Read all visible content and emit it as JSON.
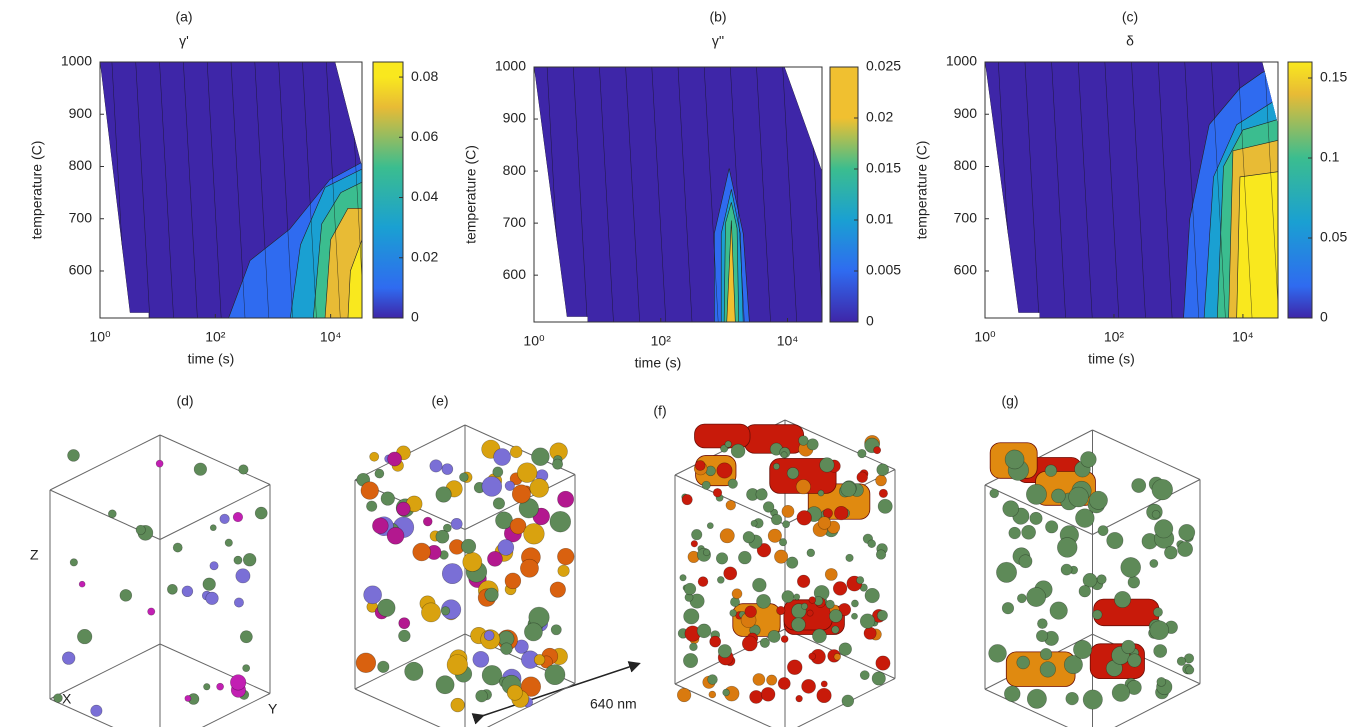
{
  "chart_data": [
    {
      "type": "contour",
      "panel": "(a)",
      "title": "γ'",
      "xlabel": "time (s)",
      "ylabel": "temperature (C)",
      "xscale": "log",
      "xlim": [
        1,
        35000
      ],
      "xticks": [
        {
          "value": 1,
          "label": "10⁰"
        },
        {
          "value": 100,
          "label": "10²"
        },
        {
          "value": 10000,
          "label": "10⁴"
        }
      ],
      "ylim": [
        510,
        1000
      ],
      "yticks": [
        600,
        700,
        800,
        900,
        1000
      ],
      "colorbar": {
        "lim": [
          0,
          0.085
        ],
        "ticks": [
          0,
          0.02,
          0.04,
          0.06,
          0.08
        ]
      },
      "contours": [
        {
          "level": 0,
          "color": "#3e26a8",
          "points": [
            [
              1,
              1000
            ],
            [
              12000,
              1000
            ],
            [
              35000,
              800
            ],
            [
              35000,
              510
            ],
            [
              7,
              510
            ],
            [
              7,
              520
            ],
            [
              3.3,
              520
            ]
          ]
        },
        {
          "level": 0.01,
          "color": "#2f6bf0",
          "points": [
            [
              170,
              510
            ],
            [
              400,
              620
            ],
            [
              1950,
              680
            ],
            [
              9700,
              775
            ],
            [
              35000,
              808
            ],
            [
              35000,
              510
            ]
          ]
        },
        {
          "level": 0.03,
          "color": "#1aa0d2",
          "points": [
            [
              2000,
              510
            ],
            [
              3000,
              650
            ],
            [
              8000,
              760
            ],
            [
              35000,
              795
            ],
            [
              35000,
              510
            ]
          ]
        },
        {
          "level": 0.05,
          "color": "#3bbd8f",
          "points": [
            [
              5000,
              510
            ],
            [
              7000,
              690
            ],
            [
              15000,
              750
            ],
            [
              35000,
              770
            ],
            [
              35000,
              510
            ]
          ]
        },
        {
          "level": 0.07,
          "color": "#e8bb35",
          "points": [
            [
              8000,
              510
            ],
            [
              10000,
              660
            ],
            [
              20000,
              720
            ],
            [
              35000,
              720
            ],
            [
              35000,
              510
            ]
          ]
        },
        {
          "level": 0.08,
          "color": "#f9e81e",
          "points": [
            [
              20000,
              510
            ],
            [
              22000,
              600
            ],
            [
              35000,
              660
            ],
            [
              35000,
              510
            ]
          ]
        }
      ]
    },
    {
      "type": "contour",
      "panel": "(b)",
      "title": "γ''",
      "xlabel": "time (s)",
      "ylabel": "temperature (C)",
      "xscale": "log",
      "xlim": [
        1,
        35000
      ],
      "xticks": [
        {
          "value": 1,
          "label": "10⁰"
        },
        {
          "value": 100,
          "label": "10²"
        },
        {
          "value": 10000,
          "label": "10⁴"
        }
      ],
      "ylim": [
        510,
        1000
      ],
      "yticks": [
        600,
        700,
        800,
        900,
        1000
      ],
      "colorbar": {
        "lim": [
          0,
          0.025
        ],
        "ticks": [
          0,
          0.005,
          0.01,
          0.015,
          0.02,
          0.025
        ]
      },
      "contours": [
        {
          "level": 0,
          "color": "#3e26a8",
          "points": [
            [
              1,
              1000
            ],
            [
              9000,
              1000
            ],
            [
              35000,
              800
            ],
            [
              35000,
              510
            ],
            [
              7,
              510
            ],
            [
              7,
              520
            ],
            [
              3.3,
              520
            ]
          ]
        },
        {
          "level": 0.005,
          "color": "#2f6bf0",
          "points": [
            [
              700,
              510
            ],
            [
              700,
              680
            ],
            [
              1200,
              805
            ],
            [
              2000,
              680
            ],
            [
              2500,
              510
            ]
          ]
        },
        {
          "level": 0.01,
          "color": "#1aa0d2",
          "points": [
            [
              900,
              510
            ],
            [
              900,
              680
            ],
            [
              1300,
              765
            ],
            [
              1800,
              680
            ],
            [
              2000,
              510
            ]
          ]
        },
        {
          "level": 0.015,
          "color": "#3bbd8f",
          "points": [
            [
              1000,
              510
            ],
            [
              1050,
              700
            ],
            [
              1300,
              740
            ],
            [
              1600,
              690
            ],
            [
              1700,
              510
            ]
          ]
        },
        {
          "level": 0.02,
          "color": "#f0c030",
          "points": [
            [
              1100,
              510
            ],
            [
              1300,
              705
            ],
            [
              1500,
              510
            ]
          ]
        }
      ]
    },
    {
      "type": "contour",
      "panel": "(c)",
      "title": "δ",
      "xlabel": "time (s)",
      "ylabel": "temperature (C)",
      "xscale": "log",
      "xlim": [
        1,
        35000
      ],
      "xticks": [
        {
          "value": 1,
          "label": "10⁰"
        },
        {
          "value": 100,
          "label": "10²"
        },
        {
          "value": 10000,
          "label": "10⁴"
        }
      ],
      "ylim": [
        510,
        1000
      ],
      "yticks": [
        600,
        700,
        800,
        900,
        1000
      ],
      "colorbar": {
        "lim": [
          0,
          0.16
        ],
        "ticks": [
          0,
          0.05,
          0.1,
          0.15
        ]
      },
      "contours": [
        {
          "level": 0,
          "color": "#3e26a8",
          "points": [
            [
              1,
              1000
            ],
            [
              20000,
              1000
            ],
            [
              35000,
              880
            ],
            [
              35000,
              510
            ],
            [
              7,
              510
            ],
            [
              7,
              520
            ],
            [
              3.3,
              520
            ]
          ]
        },
        {
          "level": 0.02,
          "color": "#2f6bf0",
          "points": [
            [
              1200,
              510
            ],
            [
              1500,
              700
            ],
            [
              3000,
              880
            ],
            [
              9000,
              950
            ],
            [
              20000,
              980
            ],
            [
              35000,
              990
            ],
            [
              35000,
              510
            ]
          ]
        },
        {
          "level": 0.06,
          "color": "#1aa0d2",
          "points": [
            [
              2500,
              510
            ],
            [
              3500,
              780
            ],
            [
              8000,
              880
            ],
            [
              35000,
              930
            ],
            [
              35000,
              510
            ]
          ]
        },
        {
          "level": 0.1,
          "color": "#3bbd8f",
          "points": [
            [
              4000,
              510
            ],
            [
              5000,
              800
            ],
            [
              10000,
              870
            ],
            [
              35000,
              890
            ],
            [
              35000,
              510
            ]
          ]
        },
        {
          "level": 0.14,
          "color": "#e8bb35",
          "points": [
            [
              6000,
              510
            ],
            [
              7000,
              830
            ],
            [
              35000,
              850
            ],
            [
              35000,
              510
            ]
          ]
        },
        {
          "level": 0.16,
          "color": "#f9e81e",
          "points": [
            [
              8000,
              510
            ],
            [
              9000,
              780
            ],
            [
              35000,
              790
            ],
            [
              35000,
              510
            ]
          ]
        }
      ]
    }
  ],
  "panels": {
    "labels": [
      "(d)",
      "(e)",
      "(f)",
      "(g)"
    ],
    "axes": [
      "Z",
      "X",
      "Y"
    ],
    "scale_bar": "640 nm"
  }
}
